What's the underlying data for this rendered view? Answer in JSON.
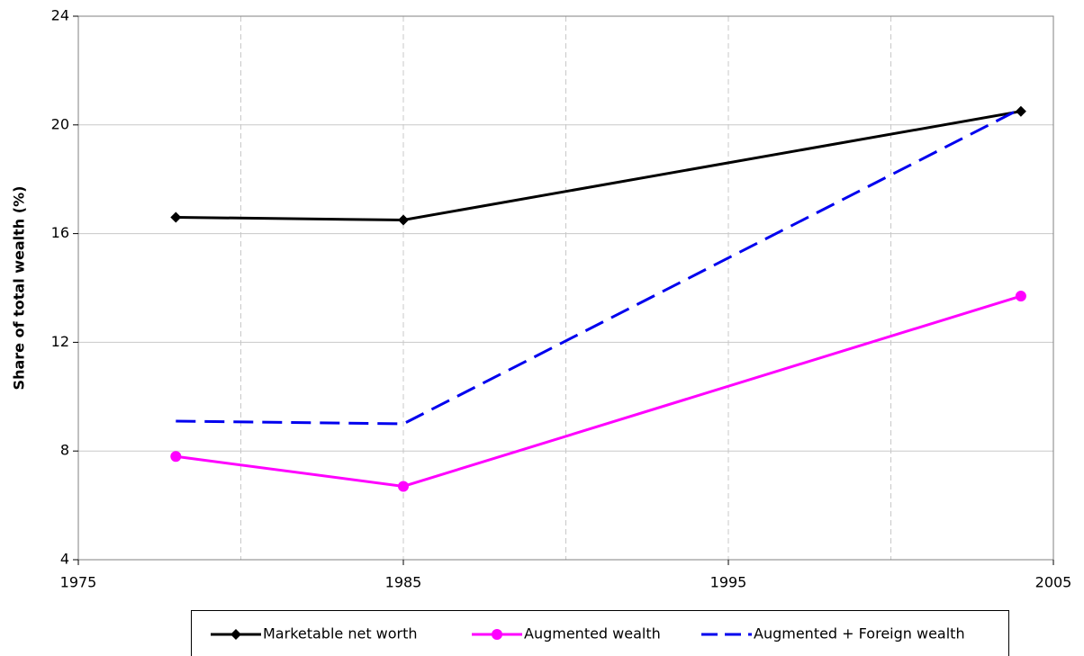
{
  "chart_data": {
    "type": "line",
    "y_label": "Share of total wealth (%)",
    "x": [
      1978,
      1985,
      2004
    ],
    "xlim": [
      1975,
      2005
    ],
    "xticks": [
      1975,
      1985,
      1995,
      2005
    ],
    "x_grid": [
      1980,
      1985,
      1990,
      1995,
      2000
    ],
    "ylim": [
      4,
      24
    ],
    "yticks": [
      4,
      8,
      12,
      16,
      20,
      24
    ],
    "grid": true,
    "legend": "bottom",
    "series": [
      {
        "name": "Marketable net worth",
        "color": "#000000",
        "marker": "diamond",
        "dash": "solid",
        "values": [
          16.6,
          16.5,
          20.5
        ]
      },
      {
        "name": "Augmented wealth",
        "color": "#ff00ff",
        "marker": "circle",
        "dash": "solid",
        "values": [
          7.8,
          6.7,
          13.7
        ]
      },
      {
        "name": "Augmented + Foreign wealth",
        "color": "#0000ee",
        "marker": "none",
        "dash": "dashed",
        "values": [
          9.1,
          9.0,
          20.6
        ]
      }
    ]
  }
}
